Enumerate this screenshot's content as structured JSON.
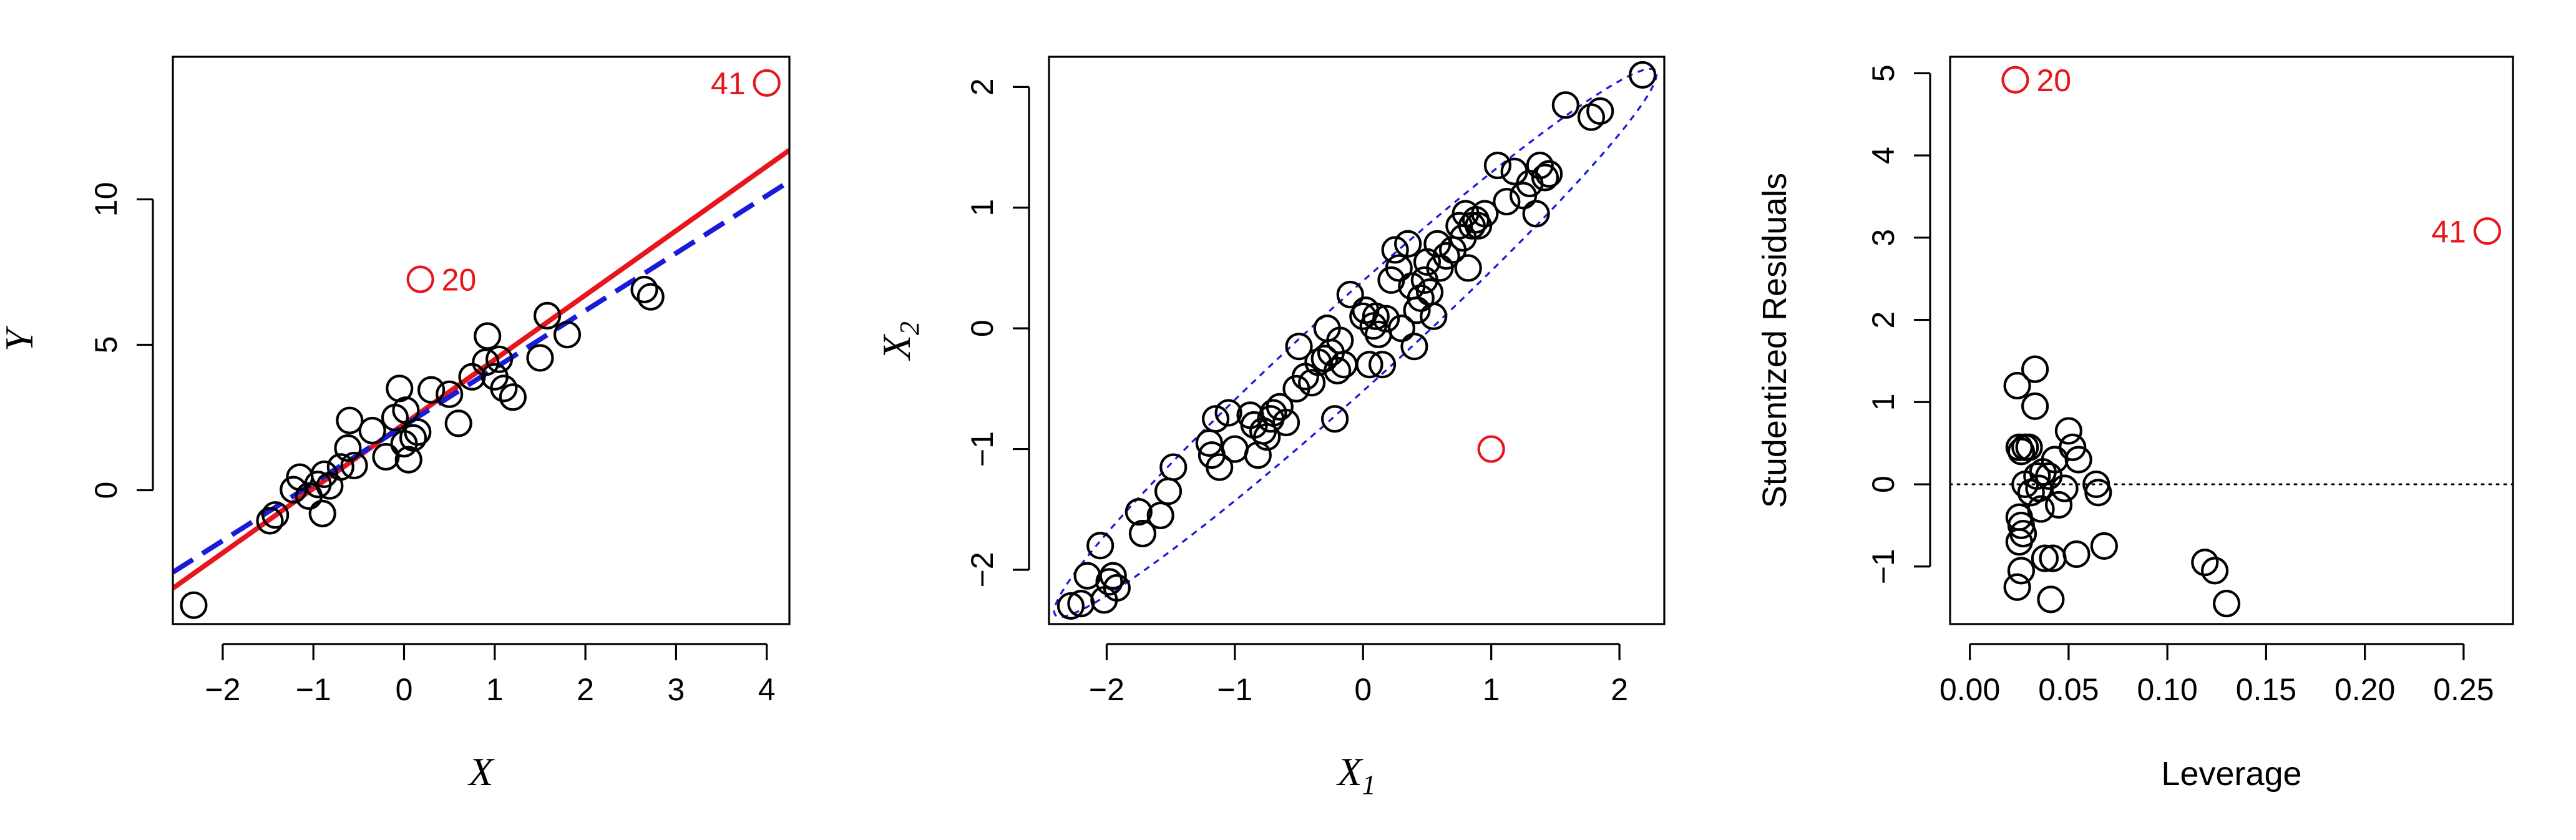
{
  "chart_data": [
    {
      "type": "scatter",
      "title": "",
      "xlabel": "X",
      "ylabel": "Y",
      "xlim": [
        -2.55,
        4.25
      ],
      "ylim": [
        -4.6,
        14.9
      ],
      "xticks": [
        -2,
        -1,
        0,
        1,
        2,
        3,
        4
      ],
      "yticks": [
        0,
        5,
        10
      ],
      "grid": false,
      "lines": [
        {
          "style": "solid",
          "color": "#e8161c",
          "x": [
            -2.55,
            4.25
          ],
          "y": [
            -3.37,
            11.69
          ]
        },
        {
          "style": "dashed",
          "color": "#1a1adb",
          "x": [
            -2.55,
            4.25
          ],
          "y": [
            -2.82,
            10.62
          ]
        }
      ],
      "points": [
        {
          "x": -2.32,
          "y": -3.95
        },
        {
          "x": -1.48,
          "y": -1.05
        },
        {
          "x": -1.42,
          "y": -0.85
        },
        {
          "x": -1.22,
          "y": 0.02
        },
        {
          "x": -1.15,
          "y": 0.45
        },
        {
          "x": -1.05,
          "y": -0.2
        },
        {
          "x": -0.95,
          "y": 0.2
        },
        {
          "x": -0.9,
          "y": -0.8
        },
        {
          "x": -0.88,
          "y": 0.55
        },
        {
          "x": -0.82,
          "y": 0.15
        },
        {
          "x": -0.7,
          "y": 0.8
        },
        {
          "x": -0.62,
          "y": 1.45
        },
        {
          "x": -0.6,
          "y": 2.4
        },
        {
          "x": -0.55,
          "y": 0.85
        },
        {
          "x": -0.35,
          "y": 2.05
        },
        {
          "x": -0.2,
          "y": 1.15
        },
        {
          "x": -0.1,
          "y": 2.5
        },
        {
          "x": -0.05,
          "y": 3.5
        },
        {
          "x": 0.0,
          "y": 1.6
        },
        {
          "x": 0.02,
          "y": 2.75
        },
        {
          "x": 0.05,
          "y": 1.05
        },
        {
          "x": 0.1,
          "y": 1.8
        },
        {
          "x": 0.15,
          "y": 2.0
        },
        {
          "x": 0.3,
          "y": 3.45
        },
        {
          "x": 0.5,
          "y": 3.3
        },
        {
          "x": 0.6,
          "y": 2.3
        },
        {
          "x": 0.75,
          "y": 3.9
        },
        {
          "x": 0.9,
          "y": 4.4
        },
        {
          "x": 0.92,
          "y": 5.3
        },
        {
          "x": 1.0,
          "y": 3.9
        },
        {
          "x": 1.05,
          "y": 4.5
        },
        {
          "x": 1.1,
          "y": 3.5
        },
        {
          "x": 1.2,
          "y": 3.2
        },
        {
          "x": 1.5,
          "y": 4.55
        },
        {
          "x": 1.58,
          "y": 6.0
        },
        {
          "x": 1.8,
          "y": 5.35
        },
        {
          "x": 2.65,
          "y": 6.9
        },
        {
          "x": 2.72,
          "y": 6.65
        }
      ],
      "highlighted_points": [
        {
          "label": "20",
          "x": 0.18,
          "y": 7.25,
          "color": "#e8161c"
        },
        {
          "label": "41",
          "x": 4.0,
          "y": 14.0,
          "color": "#e8161c"
        }
      ]
    },
    {
      "type": "scatter",
      "title": "",
      "xlabel": "X",
      "xlabel_subscript": "1",
      "ylabel": "X",
      "ylabel_subscript": "2",
      "xlim": [
        -2.45,
        2.35
      ],
      "ylim": [
        -2.45,
        2.25
      ],
      "xticks": [
        -2,
        -1,
        0,
        1,
        2
      ],
      "yticks": [
        -2,
        -1,
        0,
        1,
        2
      ],
      "grid": false,
      "ellipse": {
        "style": "dotted",
        "color": "#1a1adb",
        "center": [
          -0.06,
          -0.12
        ],
        "semi_axis_major": 3.25,
        "semi_axis_minor": 0.33,
        "angle_deg": 44.0
      },
      "points": [
        {
          "x": -2.28,
          "y": -2.3
        },
        {
          "x": -2.2,
          "y": -2.28
        },
        {
          "x": -2.15,
          "y": -2.05
        },
        {
          "x": -2.05,
          "y": -1.8
        },
        {
          "x": -2.02,
          "y": -2.25
        },
        {
          "x": -1.98,
          "y": -2.1
        },
        {
          "x": -1.95,
          "y": -2.05
        },
        {
          "x": -1.92,
          "y": -2.15
        },
        {
          "x": -1.75,
          "y": -1.52
        },
        {
          "x": -1.72,
          "y": -1.7
        },
        {
          "x": -1.58,
          "y": -1.55
        },
        {
          "x": -1.52,
          "y": -1.35
        },
        {
          "x": -1.48,
          "y": -1.15
        },
        {
          "x": -1.2,
          "y": -0.95
        },
        {
          "x": -1.18,
          "y": -1.05
        },
        {
          "x": -1.15,
          "y": -0.75
        },
        {
          "x": -1.12,
          "y": -1.15
        },
        {
          "x": -1.05,
          "y": -0.7
        },
        {
          "x": -1.0,
          "y": -1.0
        },
        {
          "x": -0.88,
          "y": -0.72
        },
        {
          "x": -0.85,
          "y": -0.8
        },
        {
          "x": -0.82,
          "y": -1.05
        },
        {
          "x": -0.78,
          "y": -0.85
        },
        {
          "x": -0.75,
          "y": -0.9
        },
        {
          "x": -0.72,
          "y": -0.75
        },
        {
          "x": -0.7,
          "y": -0.7
        },
        {
          "x": -0.65,
          "y": -0.65
        },
        {
          "x": -0.6,
          "y": -0.78
        },
        {
          "x": -0.52,
          "y": -0.5
        },
        {
          "x": -0.5,
          "y": -0.15
        },
        {
          "x": -0.45,
          "y": -0.4
        },
        {
          "x": -0.4,
          "y": -0.45
        },
        {
          "x": -0.35,
          "y": -0.28
        },
        {
          "x": -0.3,
          "y": -0.25
        },
        {
          "x": -0.28,
          "y": 0.0
        },
        {
          "x": -0.25,
          "y": -0.2
        },
        {
          "x": -0.22,
          "y": -0.75
        },
        {
          "x": -0.2,
          "y": -0.35
        },
        {
          "x": -0.18,
          "y": -0.1
        },
        {
          "x": -0.15,
          "y": -0.3
        },
        {
          "x": -0.1,
          "y": 0.28
        },
        {
          "x": 0.0,
          "y": 0.1
        },
        {
          "x": 0.02,
          "y": 0.15
        },
        {
          "x": 0.05,
          "y": -0.3
        },
        {
          "x": 0.08,
          "y": 0.02
        },
        {
          "x": 0.1,
          "y": 0.1
        },
        {
          "x": 0.12,
          "y": -0.05
        },
        {
          "x": 0.15,
          "y": -0.3
        },
        {
          "x": 0.18,
          "y": 0.08
        },
        {
          "x": 0.22,
          "y": 0.4
        },
        {
          "x": 0.25,
          "y": 0.65
        },
        {
          "x": 0.28,
          "y": 0.5
        },
        {
          "x": 0.3,
          "y": 0.0
        },
        {
          "x": 0.35,
          "y": 0.7
        },
        {
          "x": 0.38,
          "y": 0.35
        },
        {
          "x": 0.4,
          "y": -0.15
        },
        {
          "x": 0.42,
          "y": 0.15
        },
        {
          "x": 0.45,
          "y": 0.25
        },
        {
          "x": 0.48,
          "y": 0.4
        },
        {
          "x": 0.5,
          "y": 0.55
        },
        {
          "x": 0.52,
          "y": 0.3
        },
        {
          "x": 0.55,
          "y": 0.1
        },
        {
          "x": 0.58,
          "y": 0.7
        },
        {
          "x": 0.6,
          "y": 0.5
        },
        {
          "x": 0.65,
          "y": 0.6
        },
        {
          "x": 0.7,
          "y": 0.65
        },
        {
          "x": 0.75,
          "y": 0.85
        },
        {
          "x": 0.78,
          "y": 0.75
        },
        {
          "x": 0.8,
          "y": 0.95
        },
        {
          "x": 0.82,
          "y": 0.5
        },
        {
          "x": 0.85,
          "y": 0.85
        },
        {
          "x": 0.88,
          "y": 0.9
        },
        {
          "x": 0.9,
          "y": 0.85
        },
        {
          "x": 0.95,
          "y": 0.95
        },
        {
          "x": 1.05,
          "y": 1.35
        },
        {
          "x": 1.12,
          "y": 1.05
        },
        {
          "x": 1.18,
          "y": 1.3
        },
        {
          "x": 1.25,
          "y": 1.1
        },
        {
          "x": 1.3,
          "y": 1.2
        },
        {
          "x": 1.35,
          "y": 0.95
        },
        {
          "x": 1.38,
          "y": 1.35
        },
        {
          "x": 1.42,
          "y": 1.25
        },
        {
          "x": 1.45,
          "y": 1.28
        },
        {
          "x": 1.58,
          "y": 1.85
        },
        {
          "x": 1.78,
          "y": 1.75
        },
        {
          "x": 1.85,
          "y": 1.8
        },
        {
          "x": 2.18,
          "y": 2.1
        }
      ],
      "highlighted_points": [
        {
          "label": "",
          "x": 1.0,
          "y": -1.0,
          "color": "#e8161c"
        }
      ]
    },
    {
      "type": "scatter",
      "title": "",
      "xlabel": "Leverage",
      "ylabel": "Studentized Residuals",
      "xlim": [
        -0.01,
        0.275
      ],
      "ylim": [
        -1.7,
        5.2
      ],
      "xticks": [
        "0.00",
        "0.05",
        "0.10",
        "0.15",
        "0.20",
        "0.25"
      ],
      "xtick_values": [
        0.0,
        0.05,
        0.1,
        0.15,
        0.2,
        0.25
      ],
      "yticks": [
        -1,
        0,
        1,
        2,
        3,
        4,
        5
      ],
      "grid": false,
      "reference_line": {
        "y": 0,
        "style": "dotted",
        "color": "#000000"
      },
      "points": [
        {
          "x": 0.024,
          "y": 1.2
        },
        {
          "x": 0.025,
          "y": 0.45
        },
        {
          "x": 0.026,
          "y": 0.4
        },
        {
          "x": 0.028,
          "y": 0.45
        },
        {
          "x": 0.025,
          "y": -0.4
        },
        {
          "x": 0.026,
          "y": -0.5
        },
        {
          "x": 0.025,
          "y": -0.7
        },
        {
          "x": 0.024,
          "y": -1.25
        },
        {
          "x": 0.027,
          "y": -0.6
        },
        {
          "x": 0.028,
          "y": 0.0
        },
        {
          "x": 0.03,
          "y": 0.45
        },
        {
          "x": 0.031,
          "y": -0.1
        },
        {
          "x": 0.033,
          "y": 1.4
        },
        {
          "x": 0.033,
          "y": 0.95
        },
        {
          "x": 0.034,
          "y": 0.1
        },
        {
          "x": 0.035,
          "y": -0.05
        },
        {
          "x": 0.036,
          "y": -0.3
        },
        {
          "x": 0.037,
          "y": 0.15
        },
        {
          "x": 0.038,
          "y": -0.9
        },
        {
          "x": 0.04,
          "y": 0.1
        },
        {
          "x": 0.041,
          "y": -1.4
        },
        {
          "x": 0.042,
          "y": -0.9
        },
        {
          "x": 0.043,
          "y": 0.3
        },
        {
          "x": 0.045,
          "y": -0.25
        },
        {
          "x": 0.048,
          "y": -0.05
        },
        {
          "x": 0.05,
          "y": 0.65
        },
        {
          "x": 0.052,
          "y": 0.45
        },
        {
          "x": 0.054,
          "y": -0.85
        },
        {
          "x": 0.055,
          "y": 0.3
        },
        {
          "x": 0.064,
          "y": 0.0
        },
        {
          "x": 0.065,
          "y": -0.1
        },
        {
          "x": 0.068,
          "y": -0.75
        },
        {
          "x": 0.119,
          "y": -0.95
        },
        {
          "x": 0.124,
          "y": -1.05
        },
        {
          "x": 0.13,
          "y": -1.45
        },
        {
          "x": 0.026,
          "y": -1.05
        }
      ],
      "highlighted_points": [
        {
          "label": "20",
          "x": 0.023,
          "y": 4.92,
          "color": "#e8161c"
        },
        {
          "label": "41",
          "x": 0.262,
          "y": 3.08,
          "color": "#e8161c"
        }
      ]
    }
  ]
}
